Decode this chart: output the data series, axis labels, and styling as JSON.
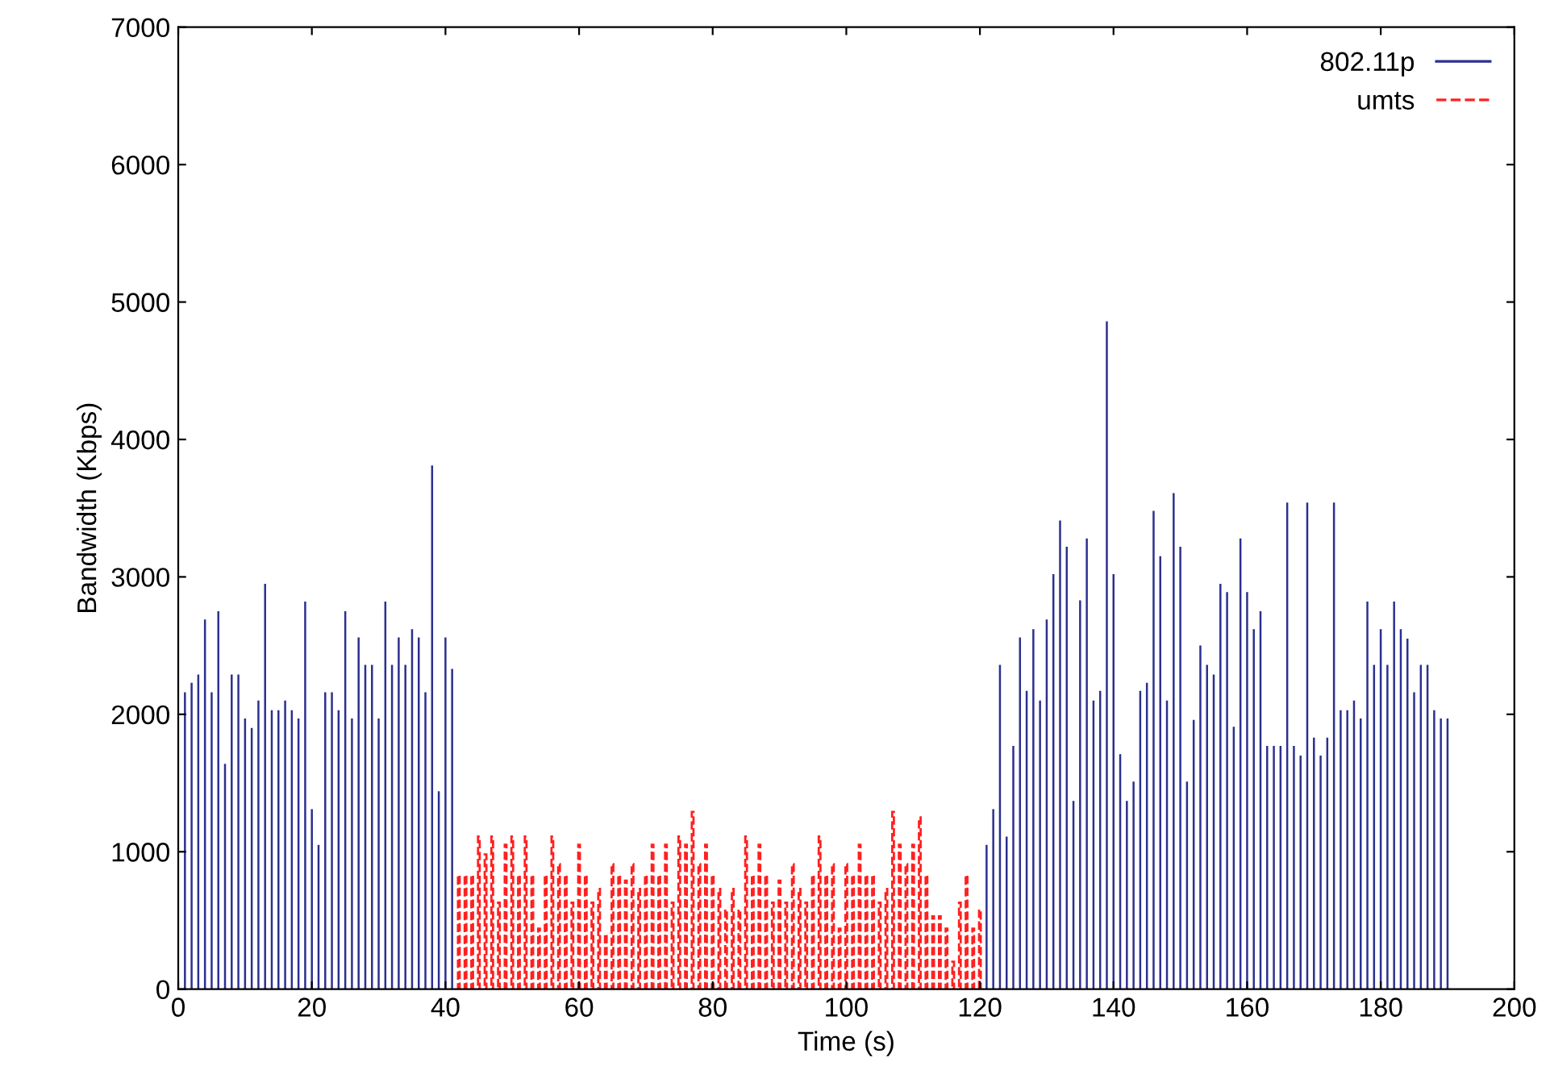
{
  "chart_data": {
    "type": "bar",
    "xlabel": "Time (s)",
    "ylabel": "Bandwidth (Kbps)",
    "xlim": [
      0,
      200
    ],
    "xticks": [
      0,
      20,
      40,
      60,
      80,
      100,
      120,
      140,
      160,
      180,
      200
    ],
    "ylim": [
      0,
      7000
    ],
    "yticks": [
      0,
      1000,
      2000,
      3000,
      4000,
      5000,
      6000,
      7000
    ],
    "grid": false,
    "legend": "top right",
    "series": [
      {
        "name": "802.11p",
        "color": "#2b2f8f",
        "line_style": "solid",
        "x": [
          1,
          2,
          3,
          4,
          5,
          6,
          7,
          8,
          9,
          10,
          11,
          12,
          13,
          14,
          15,
          16,
          17,
          18,
          19,
          20,
          21,
          22,
          23,
          24,
          25,
          26,
          27,
          28,
          29,
          30,
          31,
          32,
          33,
          34,
          35,
          36,
          37,
          38,
          39,
          40,
          41,
          121,
          122,
          123,
          124,
          125,
          126,
          127,
          128,
          129,
          130,
          131,
          132,
          133,
          134,
          135,
          136,
          137,
          138,
          139,
          140,
          141,
          142,
          143,
          144,
          145,
          146,
          147,
          148,
          149,
          150,
          151,
          152,
          153,
          154,
          155,
          156,
          157,
          158,
          159,
          160,
          161,
          162,
          163,
          164,
          165,
          166,
          167,
          168,
          169,
          170,
          171,
          172,
          173,
          174,
          175,
          176,
          177,
          178,
          179,
          180,
          181,
          182,
          183,
          184,
          185,
          186,
          187,
          188,
          189,
          190
        ],
        "values": [
          2160,
          2230,
          2290,
          2690,
          2160,
          2750,
          1640,
          2290,
          2290,
          1970,
          1900,
          2100,
          2950,
          2030,
          2030,
          2100,
          2030,
          1970,
          2820,
          1310,
          1050,
          2160,
          2160,
          2030,
          2750,
          1970,
          2560,
          2360,
          2360,
          1970,
          2820,
          2360,
          2560,
          2360,
          2620,
          2560,
          2160,
          3810,
          1440,
          2560,
          2330,
          1050,
          1310,
          2360,
          1110,
          1770,
          2560,
          2170,
          2620,
          2100,
          2690,
          3020,
          3410,
          3220,
          1370,
          2830,
          3280,
          2100,
          2170,
          4860,
          3020,
          1710,
          1370,
          1510,
          2170,
          2230,
          3480,
          3150,
          2100,
          3610,
          3220,
          1510,
          1960,
          2500,
          2360,
          2290,
          2950,
          2890,
          1910,
          3280,
          2890,
          2620,
          2750,
          1770,
          1770,
          1770,
          3540,
          1770,
          1700,
          3540,
          1830,
          1700,
          1830,
          3540,
          2030,
          2030,
          2100,
          1970,
          2820,
          2360,
          2620,
          2360,
          2820,
          2620,
          2550,
          2160,
          2360,
          2360,
          2030,
          1970,
          1970
        ]
      },
      {
        "name": "umts",
        "color": "#ff2020",
        "line_style": "dashed",
        "x": [
          42,
          43,
          44,
          45,
          46,
          47,
          48,
          49,
          50,
          51,
          52,
          53,
          54,
          55,
          56,
          57,
          58,
          59,
          60,
          61,
          62,
          63,
          64,
          65,
          66,
          67,
          68,
          69,
          70,
          71,
          72,
          73,
          74,
          75,
          76,
          77,
          78,
          79,
          80,
          81,
          82,
          83,
          84,
          85,
          86,
          87,
          88,
          89,
          90,
          91,
          92,
          93,
          94,
          95,
          96,
          97,
          98,
          99,
          100,
          101,
          102,
          103,
          104,
          105,
          106,
          107,
          108,
          109,
          110,
          111,
          112,
          113,
          114,
          115,
          116,
          117,
          118,
          119,
          120
        ],
        "values": [
          830,
          830,
          830,
          1110,
          980,
          1110,
          630,
          1050,
          1110,
          830,
          1110,
          830,
          440,
          830,
          1110,
          910,
          830,
          630,
          1050,
          830,
          630,
          730,
          400,
          910,
          830,
          790,
          910,
          730,
          830,
          1050,
          830,
          1050,
          630,
          1110,
          1050,
          1290,
          910,
          1050,
          830,
          730,
          580,
          730,
          580,
          1110,
          830,
          1050,
          830,
          630,
          790,
          630,
          910,
          730,
          630,
          830,
          1110,
          830,
          910,
          440,
          910,
          830,
          1050,
          830,
          830,
          630,
          730,
          1290,
          1050,
          910,
          1050,
          1250,
          830,
          530,
          530,
          440,
          200,
          630,
          830,
          440,
          580
        ]
      }
    ]
  }
}
